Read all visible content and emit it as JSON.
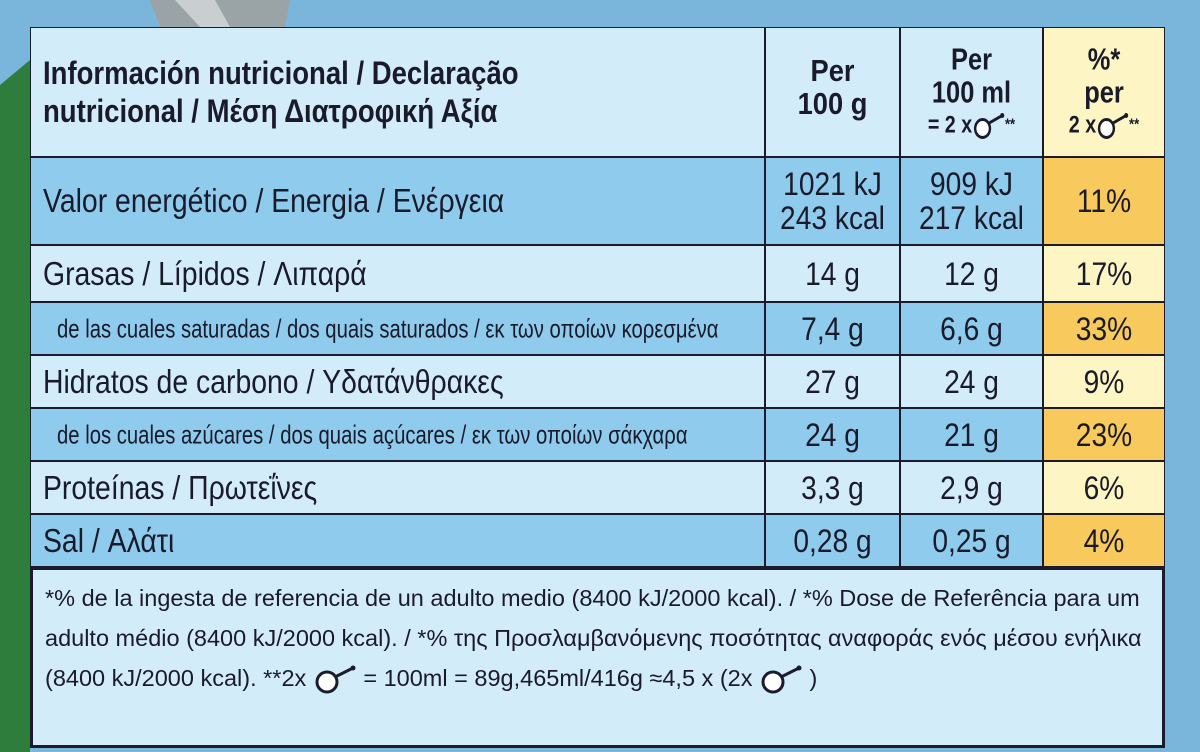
{
  "header": {
    "title": [
      "Información nutricional / Declaração",
      "nutricional / Μέση Διατροφική Αξία"
    ],
    "per_100g": [
      "Per",
      "100 g"
    ],
    "per_100ml": {
      "lines": [
        "Per",
        "100 ml"
      ],
      "serving_prefix": "= 2 x",
      "serving_suffix": "**"
    },
    "percent": {
      "lines": [
        "%*",
        "per"
      ],
      "serving_prefix": "2 x",
      "serving_suffix": "**"
    }
  },
  "rows": [
    {
      "label": "Valor energético / Energia / Ενέργεια",
      "per_100g": [
        "1021 kJ",
        "243 kcal"
      ],
      "per_100ml": [
        "909 kJ",
        "217 kcal"
      ],
      "percent": "11%"
    },
    {
      "label": "Grasas / Lípidos / Λιπαρά",
      "per_100g": [
        "14 g"
      ],
      "per_100ml": [
        "12 g"
      ],
      "percent": "17%"
    },
    {
      "label": "de las cuales saturadas / dos quais saturados / εκ των οποίων κορεσμένα",
      "per_100g": [
        "7,4 g"
      ],
      "per_100ml": [
        "6,6 g"
      ],
      "percent": "33%"
    },
    {
      "label": "Hidratos de carbono / Υδατάνθρακες",
      "per_100g": [
        "27 g"
      ],
      "per_100ml": [
        "24 g"
      ],
      "percent": "9%"
    },
    {
      "label": "de los cuales azúcares / dos quais açúcares / εκ των οποίων σάκχαρα",
      "per_100g": [
        "24 g"
      ],
      "per_100ml": [
        "21 g"
      ],
      "percent": "23%"
    },
    {
      "label": "Proteínas / Πρωτεΐνες",
      "per_100g": [
        "3,3 g"
      ],
      "per_100ml": [
        "2,9 g"
      ],
      "percent": "6%"
    },
    {
      "label": "Sal / Αλάτι",
      "per_100g": [
        "0,28 g"
      ],
      "per_100ml": [
        "0,25 g"
      ],
      "percent": "4%"
    }
  ],
  "footnote": {
    "text": "*% de la ingesta de referencia de un adulto medio (8400 kJ/2000 kcal). / *% Dose de Referência para um adulto médio (8400 kJ/2000 kcal). / *% της Προσλαμβανόμενης ποσότητας αναφοράς ενός μέσου ενήλικα (8400 kJ/2000 kcal).",
    "serving_prefix": "**2x",
    "serving_equivalence": "= 100ml = 89g,465ml/416g ≈4,5 x (2x",
    "closing": ")"
  }
}
